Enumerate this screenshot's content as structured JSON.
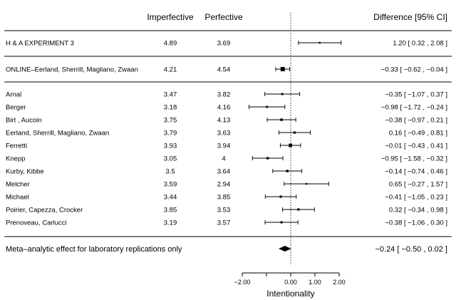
{
  "chart_data": {
    "type": "forest",
    "headers": {
      "imperfective": "Imperfective",
      "perfective": "Perfective",
      "difference": "Difference [95% CI]"
    },
    "rows": [
      {
        "group": "original",
        "label": "H & A EXPERIMENT 3",
        "imperfective": "4.89",
        "perfective": "3.69",
        "estimate": 1.2,
        "lower": 0.32,
        "upper": 2.08,
        "ci_text": "1.20 [  0.32 ,  2.08 ]"
      },
      {
        "group": "online",
        "label": "ONLINE–Eerland, Sherrill, Magliano, Zwaan",
        "imperfective": "4.21",
        "perfective": "4.54",
        "estimate": -0.33,
        "lower": -0.62,
        "upper": -0.04,
        "ci_text": "−0.33 [ −0.62 , −0.04 ]"
      },
      {
        "group": "lab",
        "label": "Arnal",
        "imperfective": "3.47",
        "perfective": "3.82",
        "estimate": -0.35,
        "lower": -1.07,
        "upper": 0.37,
        "ci_text": "−0.35 [ −1.07 ,  0.37 ]"
      },
      {
        "group": "lab",
        "label": "Berger",
        "imperfective": "3.18",
        "perfective": "4.16",
        "estimate": -0.98,
        "lower": -1.72,
        "upper": -0.24,
        "ci_text": "−0.98 [ −1.72 , −0.24 ]"
      },
      {
        "group": "lab",
        "label": "Birt , Aucoin",
        "imperfective": "3.75",
        "perfective": "4.13",
        "estimate": -0.38,
        "lower": -0.97,
        "upper": 0.21,
        "ci_text": "−0.38 [ −0.97 ,  0.21 ]"
      },
      {
        "group": "lab",
        "label": "Eerland, Sherrill, Magliano,  Zwaan",
        "imperfective": "3.79",
        "perfective": "3.63",
        "estimate": 0.16,
        "lower": -0.49,
        "upper": 0.81,
        "ci_text": "0.16 [ −0.49 ,  0.81 ]"
      },
      {
        "group": "lab",
        "label": "Ferretti",
        "imperfective": "3.93",
        "perfective": "3.94",
        "estimate": -0.01,
        "lower": -0.43,
        "upper": 0.41,
        "ci_text": "−0.01 [ −0.43 ,  0.41 ]"
      },
      {
        "group": "lab",
        "label": "Knepp",
        "imperfective": "3.05",
        "perfective": "4",
        "estimate": -0.95,
        "lower": -1.58,
        "upper": -0.32,
        "ci_text": "−0.95 [ −1.58 , −0.32 ]"
      },
      {
        "group": "lab",
        "label": "Kurby, Kibbe",
        "imperfective": "3.5",
        "perfective": "3.64",
        "estimate": -0.14,
        "lower": -0.74,
        "upper": 0.46,
        "ci_text": "−0.14 [ −0.74 ,  0.46 ]"
      },
      {
        "group": "lab",
        "label": "Melcher",
        "imperfective": "3.59",
        "perfective": "2.94",
        "estimate": 0.65,
        "lower": -0.27,
        "upper": 1.57,
        "ci_text": "0.65 [ −0.27 ,  1.57 ]"
      },
      {
        "group": "lab",
        "label": "Michael",
        "imperfective": "3.44",
        "perfective": "3.85",
        "estimate": -0.41,
        "lower": -1.05,
        "upper": 0.23,
        "ci_text": "−0.41 [ −1.05 ,  0.23 ]"
      },
      {
        "group": "lab",
        "label": "Poirier, Capezza, Crocker",
        "imperfective": "3.85",
        "perfective": "3.53",
        "estimate": 0.32,
        "lower": -0.34,
        "upper": 0.98,
        "ci_text": "0.32 [ −0.34 ,  0.98 ]"
      },
      {
        "group": "lab",
        "label": "Prenoveau, Carlucci",
        "imperfective": "3.19",
        "perfective": "3.57",
        "estimate": -0.38,
        "lower": -1.06,
        "upper": 0.3,
        "ci_text": "−0.38 [ −1.06 ,  0.30 ]"
      }
    ],
    "summary": {
      "label": "Meta–analytic effect for laboratory replications only",
      "estimate": -0.24,
      "lower": -0.5,
      "upper": 0.02,
      "ci_text": "−0.24 [ −0.50 , 0.02 ]"
    },
    "x_axis": {
      "label": "Intentionality",
      "range": [
        -2.0,
        2.0
      ],
      "ticks": [
        -2.0,
        -1.0,
        0.0,
        1.0,
        2.0
      ],
      "tick_labels": [
        "−2.00",
        "",
        "0.00",
        "1.00",
        "2.00"
      ],
      "reference_line": 0
    },
    "colors": {
      "ink": "#000000",
      "background": "#ffffff"
    }
  }
}
